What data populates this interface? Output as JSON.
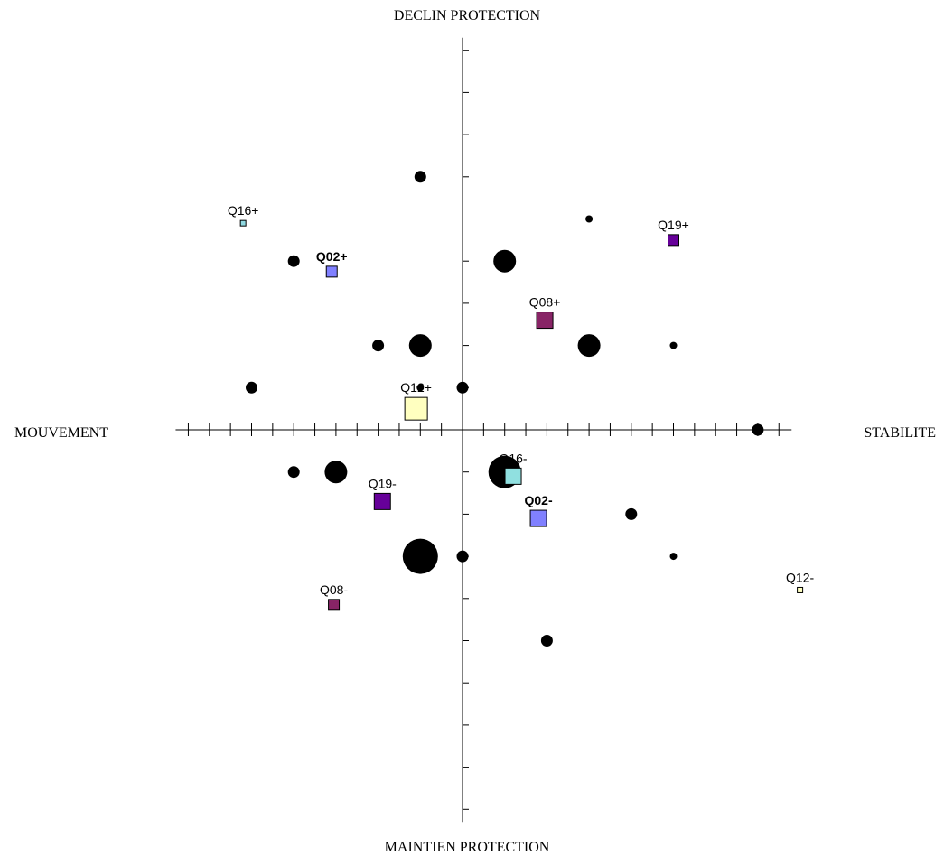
{
  "chart_data": {
    "type": "scatter",
    "title": "",
    "axes": {
      "top": "DECLIN PROTECTION",
      "bottom": "MAINTIEN PROTECTION",
      "left": "MOUVEMENT",
      "right": "STABILITE"
    },
    "xlim": [
      -6.8,
      7.8
    ],
    "ylim": [
      -9.3,
      9.3
    ],
    "grid": false,
    "legend": "none",
    "points": [
      {
        "x": -1.0,
        "y": 6.0,
        "size": "medium"
      },
      {
        "x": 3.0,
        "y": 5.0,
        "size": "small"
      },
      {
        "x": -4.0,
        "y": 4.0,
        "size": "medium"
      },
      {
        "x": 1.0,
        "y": 4.0,
        "size": "large"
      },
      {
        "x": -2.0,
        "y": 2.0,
        "size": "medium"
      },
      {
        "x": -1.0,
        "y": 2.0,
        "size": "large"
      },
      {
        "x": 3.0,
        "y": 2.0,
        "size": "large"
      },
      {
        "x": 5.0,
        "y": 2.0,
        "size": "small"
      },
      {
        "x": -5.0,
        "y": 1.0,
        "size": "medium"
      },
      {
        "x": -1.0,
        "y": 1.0,
        "size": "small"
      },
      {
        "x": 0.0,
        "y": 1.0,
        "size": "medium"
      },
      {
        "x": 7.0,
        "y": 0.0,
        "size": "medium"
      },
      {
        "x": -4.0,
        "y": -1.0,
        "size": "medium"
      },
      {
        "x": -3.0,
        "y": -1.0,
        "size": "large"
      },
      {
        "x": 1.0,
        "y": -1.0,
        "size": "xlarge"
      },
      {
        "x": 4.0,
        "y": -2.0,
        "size": "medium"
      },
      {
        "x": -1.0,
        "y": -3.0,
        "size": "xxlarge"
      },
      {
        "x": 0.0,
        "y": -3.0,
        "size": "medium"
      },
      {
        "x": 5.0,
        "y": -3.0,
        "size": "small"
      },
      {
        "x": 2.0,
        "y": -5.0,
        "size": "medium"
      }
    ],
    "modalities": [
      {
        "label": "Q16+",
        "x": -5.2,
        "y": 4.9,
        "size": "tiny",
        "color": "#8fd8e0",
        "bold": false
      },
      {
        "label": "Q19+",
        "x": 5.0,
        "y": 4.5,
        "size": "small",
        "color": "#660099",
        "bold": false
      },
      {
        "label": "Q02+",
        "x": -3.1,
        "y": 3.75,
        "size": "small",
        "color": "#8080ff",
        "bold": true
      },
      {
        "label": "Q08+",
        "x": 1.95,
        "y": 2.6,
        "size": "medium",
        "color": "#882466",
        "bold": false
      },
      {
        "label": "Q12+",
        "x": -1.1,
        "y": 0.5,
        "size": "large",
        "color": "#ffffc0",
        "bold": false
      },
      {
        "label": "Q16-",
        "x": 1.2,
        "y": -1.1,
        "size": "medium",
        "color": "#90e0e0",
        "bold": false
      },
      {
        "label": "Q19-",
        "x": -1.9,
        "y": -1.7,
        "size": "medium",
        "color": "#660099",
        "bold": false
      },
      {
        "label": "Q02-",
        "x": 1.8,
        "y": -2.1,
        "size": "medium",
        "color": "#8080ff",
        "bold": true
      },
      {
        "label": "Q08-",
        "x": -3.05,
        "y": -4.15,
        "size": "small",
        "color": "#882466",
        "bold": false
      },
      {
        "label": "Q12-",
        "x": 8.0,
        "y": -3.8,
        "size": "tiny",
        "color": "#ffffc0",
        "bold": false
      }
    ]
  }
}
